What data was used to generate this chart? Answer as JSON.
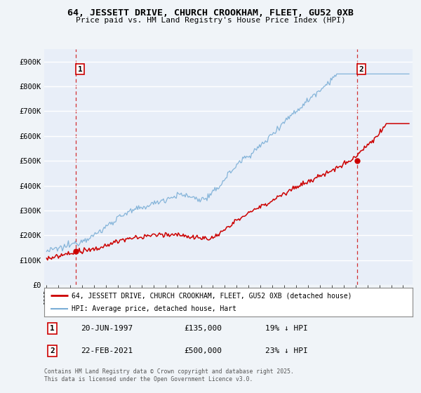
{
  "title_line1": "64, JESSETT DRIVE, CHURCH CROOKHAM, FLEET, GU52 0XB",
  "title_line2": "Price paid vs. HM Land Registry's House Price Index (HPI)",
  "ylim": [
    0,
    950000
  ],
  "yticks": [
    0,
    100000,
    200000,
    300000,
    400000,
    500000,
    600000,
    700000,
    800000,
    900000
  ],
  "ytick_labels": [
    "£0",
    "£100K",
    "£200K",
    "£300K",
    "£400K",
    "£500K",
    "£600K",
    "£700K",
    "£800K",
    "£900K"
  ],
  "legend_entries": [
    "64, JESSETT DRIVE, CHURCH CROOKHAM, FLEET, GU52 0XB (detached house)",
    "HPI: Average price, detached house, Hart"
  ],
  "legend_colors": [
    "#cc0000",
    "#7aaed6"
  ],
  "annotation1": {
    "label": "1",
    "date": "20-JUN-1997",
    "price": "£135,000",
    "pct": "19% ↓ HPI"
  },
  "annotation2": {
    "label": "2",
    "date": "22-FEB-2021",
    "price": "£500,000",
    "pct": "23% ↓ HPI"
  },
  "footer": "Contains HM Land Registry data © Crown copyright and database right 2025.\nThis data is licensed under the Open Government Licence v3.0.",
  "background_color": "#f0f4f8",
  "plot_bg_color": "#e8eef8",
  "grid_color": "#ffffff",
  "marker1_x": 1997.47,
  "marker1_y": 135000,
  "marker2_x": 2021.14,
  "marker2_y": 500000,
  "vline1_x": 1997.47,
  "vline2_x": 2021.14,
  "xlim_left": 1994.8,
  "xlim_right": 2025.8
}
